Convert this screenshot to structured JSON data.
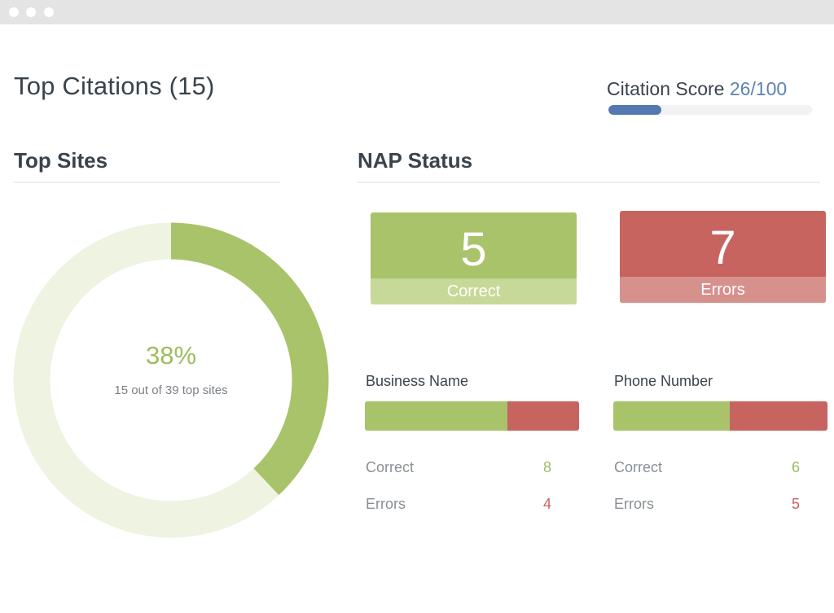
{
  "window": {
    "controls": [
      "dot",
      "dot",
      "dot"
    ]
  },
  "page": {
    "title": "Top Citations (15)"
  },
  "citation_score": {
    "label": "Citation Score",
    "value": "26/100",
    "fraction": 0.26,
    "bar_color": "#5479b2"
  },
  "top_sites": {
    "title": "Top Sites",
    "percent_label": "38%",
    "fraction": 0.38,
    "subtitle": "15 out of 39 top sites",
    "fill_color": "#a9c36a",
    "track_color": "#eef3e2"
  },
  "nap_status": {
    "title": "NAP Status",
    "correct_card": {
      "value": "5",
      "label": "Correct",
      "color": "#a9c36a"
    },
    "errors_card": {
      "value": "7",
      "label": "Errors",
      "color": "#c7645f"
    },
    "metrics": [
      {
        "title": "Business Name",
        "correct_fraction": 0.667,
        "correct_label": "Correct",
        "correct_value": "8",
        "errors_label": "Errors",
        "errors_value": "4"
      },
      {
        "title": "Phone Number",
        "correct_fraction": 0.545,
        "correct_label": "Correct",
        "correct_value": "6",
        "errors_label": "Errors",
        "errors_value": "5"
      }
    ]
  }
}
